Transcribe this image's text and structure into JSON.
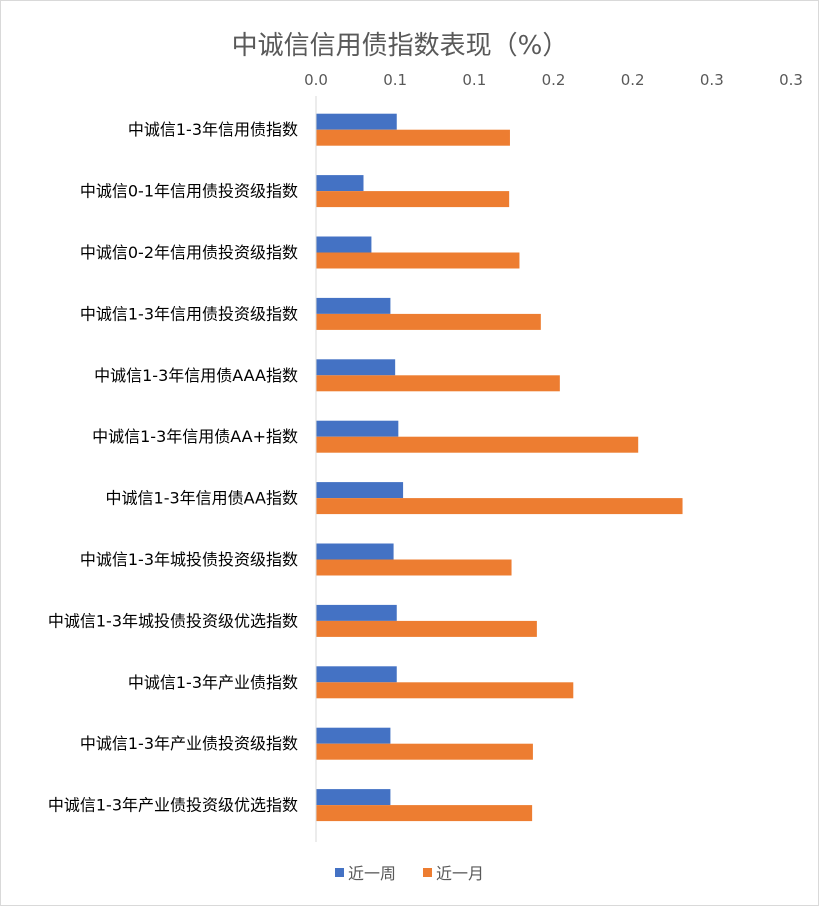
{
  "chart_data": {
    "type": "bar",
    "orientation": "horizontal",
    "title": "中诚信信用债指数表现（%）",
    "xlabel": "",
    "ylabel": "",
    "xlim": [
      0,
      0.3
    ],
    "x_axis_position": "top",
    "x_tick_values": [
      0,
      0.05,
      0.1,
      0.15,
      0.2,
      0.25,
      0.3
    ],
    "x_tick_labels": [
      "0.0",
      "0.1",
      "0.1",
      "0.2",
      "0.2",
      "0.3",
      "0.3"
    ],
    "grid": false,
    "legend_position": "bottom",
    "categories": [
      "中诚信1-3年信用债指数",
      "中诚信0-1年信用债投资级指数",
      "中诚信0-2年信用债投资级指数",
      "中诚信1-3年信用债投资级指数",
      "中诚信1-3年信用债AAA指数",
      "中诚信1-3年信用债AA+指数",
      "中诚信1-3年信用债AA指数",
      "中诚信1-3年城投债投资级指数",
      "中诚信1-3年城投债投资级优选指数",
      "中诚信1-3年产业债指数",
      "中诚信1-3年产业债投资级指数",
      "中诚信1-3年产业债投资级优选指数"
    ],
    "series": [
      {
        "name": "近一周",
        "color": "#4472c4",
        "values": [
          0.051,
          0.03,
          0.035,
          0.047,
          0.05,
          0.052,
          0.055,
          0.049,
          0.051,
          0.051,
          0.047,
          0.047
        ]
      },
      {
        "name": "近一月",
        "color": "#ed7d31",
        "values": [
          0.1225,
          0.122,
          0.1285,
          0.142,
          0.154,
          0.2035,
          0.2315,
          0.1235,
          0.1395,
          0.1625,
          0.137,
          0.1365
        ]
      }
    ]
  }
}
